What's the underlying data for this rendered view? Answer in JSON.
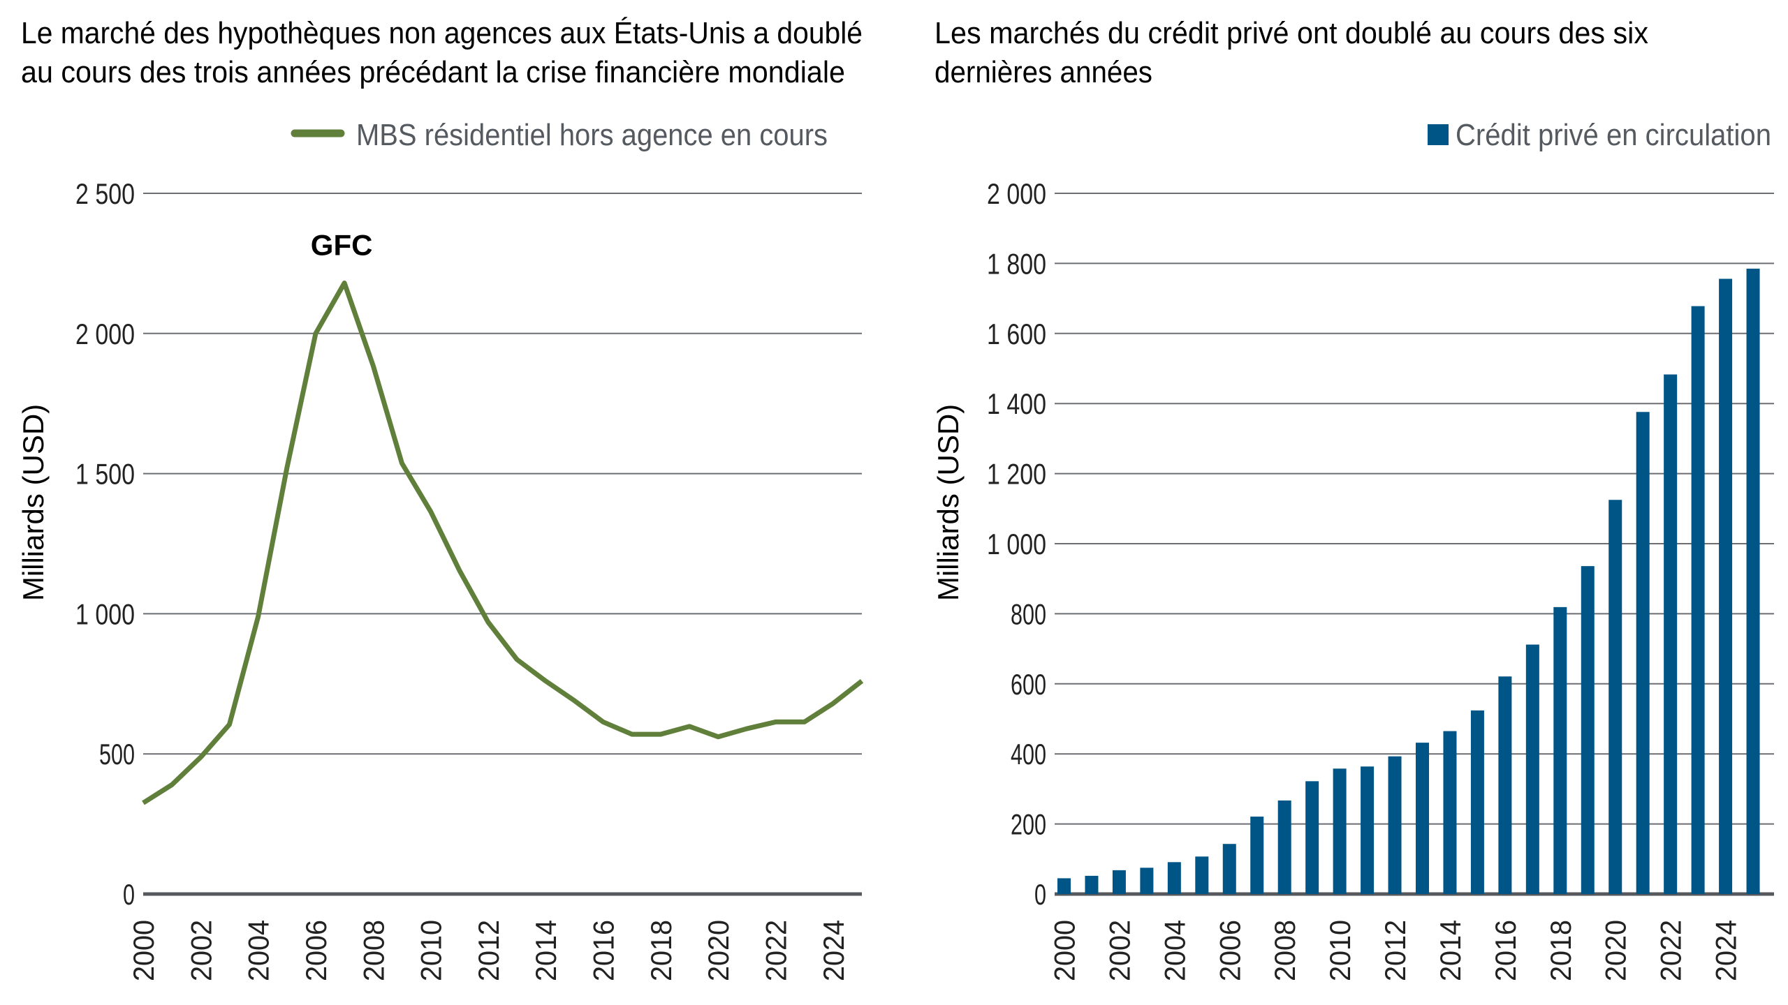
{
  "colors": {
    "line": "#5f7f3a",
    "bar": "#005587",
    "grid": "#6b6e72"
  },
  "chart_data": [
    {
      "type": "line",
      "title_lines": [
        "Le marché des hypothèques non agences aux États-Unis a doublé",
        "au cours des trois années précédant la crise financière mondiale"
      ],
      "legend": "MBS résidentiel hors agence en cours",
      "ylabel": "Milliards (USD)",
      "annotation": "GFC",
      "ylim": [
        0,
        2500
      ],
      "yticks": [
        0,
        500,
        1000,
        1500,
        2000,
        2500
      ],
      "ytick_labels": [
        "0",
        "500",
        "1 000",
        "1 500",
        "2 000",
        "2 500"
      ],
      "xticks": [
        "2000",
        "2002",
        "2004",
        "2006",
        "2008",
        "2010",
        "2012",
        "2014",
        "2016",
        "2018",
        "2020",
        "2022",
        "2024"
      ],
      "x": [
        2000,
        2001,
        2002,
        2003,
        2004,
        2005,
        2006,
        2007,
        2008,
        2009,
        2010,
        2011,
        2012,
        2013,
        2014,
        2015,
        2016,
        2017,
        2018,
        2019,
        2020,
        2021,
        2022,
        2023,
        2024,
        2025
      ],
      "values": [
        325,
        390,
        488,
        605,
        990,
        1520,
        2000,
        2180,
        1885,
        1537,
        1365,
        1155,
        970,
        837,
        760,
        690,
        614,
        570,
        570,
        598,
        561,
        590,
        614,
        614,
        680,
        760
      ],
      "grid": true,
      "legend_position": "top-right"
    },
    {
      "type": "bar",
      "title_lines": [
        "Les marchés du crédit privé ont doublé au cours des six",
        "dernières années"
      ],
      "legend": "Crédit privé en circulation",
      "ylabel": "Milliards (USD)",
      "ylim": [
        0,
        2000
      ],
      "yticks": [
        0,
        200,
        400,
        600,
        800,
        1000,
        1200,
        1400,
        1600,
        1800,
        2000
      ],
      "ytick_labels": [
        "0",
        "200",
        "400",
        "600",
        "800",
        "1 000",
        "1 200",
        "1 400",
        "1 600",
        "1 800",
        "2 000"
      ],
      "xticks": [
        "2000",
        "2002",
        "2004",
        "2006",
        "2008",
        "2010",
        "2012",
        "2014",
        "2016",
        "2018",
        "2020",
        "2022",
        "2024"
      ],
      "x": [
        2000,
        2001,
        2002,
        2003,
        2004,
        2005,
        2006,
        2007,
        2008,
        2009,
        2010,
        2011,
        2012,
        2013,
        2014,
        2015,
        2016,
        2017,
        2018,
        2019,
        2020,
        2021,
        2022,
        2023,
        2024,
        2025
      ],
      "values": [
        45,
        52,
        68,
        75,
        91,
        107,
        143,
        221,
        267,
        322,
        358,
        364,
        393,
        432,
        465,
        524,
        621,
        712,
        819,
        936,
        1125,
        1376,
        1483,
        1678,
        1756,
        1785
      ],
      "grid": true,
      "legend_position": "top-right"
    }
  ]
}
